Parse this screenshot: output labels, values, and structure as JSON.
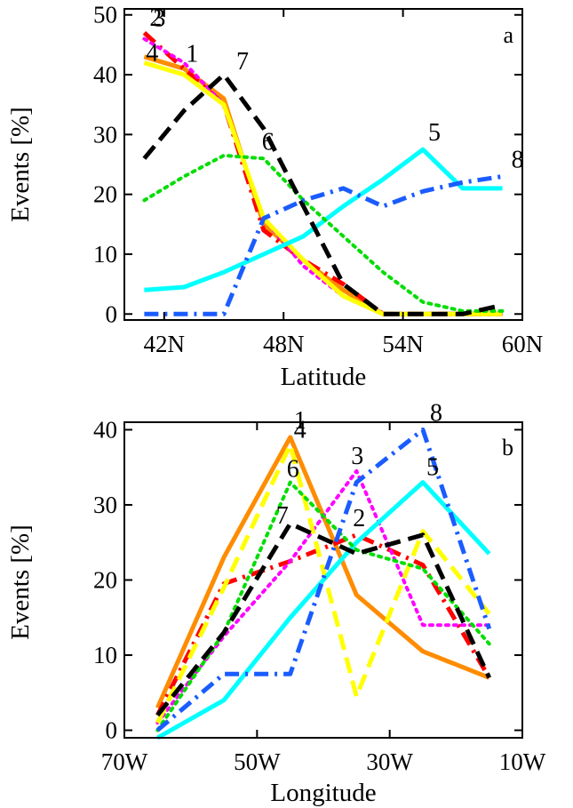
{
  "chart_data": [
    {
      "type": "line",
      "panel_label": "a",
      "xlabel": "Latitude",
      "ylabel": "Events [%]",
      "xlim": [
        40,
        60
      ],
      "ylim": [
        -1,
        51
      ],
      "x_ticks": [
        42,
        48,
        54,
        60
      ],
      "x_tick_labels": [
        "42N",
        "48N",
        "54N",
        "60N"
      ],
      "y_ticks": [
        0,
        10,
        20,
        30,
        40,
        50
      ],
      "y_tick_labels": [
        "0",
        "10",
        "20",
        "30",
        "40",
        "50"
      ],
      "grid": false,
      "legend": "inline numeric labels at line ends",
      "series": [
        {
          "name": "1",
          "color": "#ff8c00",
          "style": "solid",
          "x": [
            41,
            43,
            45,
            47,
            49,
            51,
            53,
            55,
            57,
            59
          ],
          "y": [
            43,
            41,
            36,
            15,
            9,
            4,
            0,
            0,
            0,
            0
          ]
        },
        {
          "name": "2",
          "color": "#ff0000",
          "style": "dashdot",
          "x": [
            41,
            43,
            45,
            47,
            49,
            51,
            53,
            55,
            57,
            59
          ],
          "y": [
            47,
            41,
            35,
            14,
            9,
            5,
            0,
            0,
            0,
            0
          ]
        },
        {
          "name": "3",
          "color": "#ff00ff",
          "style": "dotted",
          "x": [
            41,
            43,
            45,
            47,
            49,
            51,
            53,
            55,
            57,
            59
          ],
          "y": [
            46,
            42,
            35,
            16,
            8,
            3,
            0,
            0,
            0,
            0
          ]
        },
        {
          "name": "4",
          "color": "#ffff00",
          "style": "solid",
          "x": [
            41,
            43,
            45,
            47,
            49,
            51,
            53,
            55,
            57,
            59
          ],
          "y": [
            42,
            40,
            35,
            16,
            9,
            3,
            0,
            0,
            0,
            0
          ]
        },
        {
          "name": "5",
          "color": "#00ffff",
          "style": "solid",
          "x": [
            41,
            43,
            45,
            47,
            49,
            51,
            53,
            55,
            57,
            59
          ],
          "y": [
            4,
            4.5,
            7,
            10,
            13,
            18,
            22.5,
            27.5,
            21,
            21
          ]
        },
        {
          "name": "6",
          "color": "#00dd00",
          "style": "dotted",
          "x": [
            41,
            43,
            45,
            47,
            49,
            51,
            53,
            55,
            57,
            59
          ],
          "y": [
            19,
            23,
            26.5,
            26,
            19,
            13,
            7,
            2,
            0.5,
            0.5
          ]
        },
        {
          "name": "7",
          "color": "#000000",
          "style": "dashed",
          "x": [
            41,
            43,
            45,
            47,
            49,
            51,
            53,
            55,
            57,
            59
          ],
          "y": [
            26,
            34,
            40,
            31,
            18,
            5,
            0,
            0,
            0,
            1.5
          ]
        },
        {
          "name": "8",
          "color": "#1a5cff",
          "style": "dashdot",
          "x": [
            41,
            43,
            45,
            47,
            49,
            51,
            53,
            55,
            57,
            59
          ],
          "y": [
            0,
            0,
            0,
            16,
            19,
            21,
            18,
            20.5,
            22,
            23
          ]
        }
      ]
    },
    {
      "type": "line",
      "panel_label": "b",
      "xlabel": "Longitude",
      "ylabel": "Events [%]",
      "xlim": [
        -70,
        -10
      ],
      "ylim": [
        -1,
        41
      ],
      "x_ticks": [
        -70,
        -50,
        -30,
        -10
      ],
      "x_tick_labels": [
        "70W",
        "50W",
        "30W",
        "10W"
      ],
      "y_ticks": [
        0,
        10,
        20,
        30,
        40
      ],
      "y_tick_labels": [
        "0",
        "10",
        "20",
        "30",
        "40"
      ],
      "grid": false,
      "legend": "inline numeric labels at line peaks",
      "series": [
        {
          "name": "1",
          "color": "#ff8c00",
          "style": "solid",
          "x": [
            -65,
            -55,
            -45,
            -35,
            -25,
            -15
          ],
          "y": [
            3,
            23,
            39,
            18,
            10.5,
            7
          ]
        },
        {
          "name": "2",
          "color": "#ff0000",
          "style": "dashdot",
          "x": [
            -65,
            -55,
            -45,
            -35,
            -25,
            -15
          ],
          "y": [
            2,
            19.5,
            22.5,
            26,
            22,
            7
          ]
        },
        {
          "name": "3",
          "color": "#ff00ff",
          "style": "dotted",
          "x": [
            -65,
            -55,
            -45,
            -35,
            -25,
            -15
          ],
          "y": [
            1,
            12.5,
            22.5,
            34.5,
            14,
            14
          ]
        },
        {
          "name": "4",
          "color": "#ffff00",
          "style": "dashed",
          "x": [
            -65,
            -55,
            -45,
            -35,
            -25,
            -15
          ],
          "y": [
            1,
            19,
            38,
            4.5,
            26.5,
            15.5
          ]
        },
        {
          "name": "5",
          "color": "#00ffff",
          "style": "solid",
          "x": [
            -65,
            -55,
            -45,
            -35,
            -25,
            -15
          ],
          "y": [
            -1,
            4,
            15,
            25,
            33,
            23.5
          ]
        },
        {
          "name": "6",
          "color": "#00dd00",
          "style": "dotted",
          "x": [
            -65,
            -55,
            -45,
            -35,
            -25,
            -15
          ],
          "y": [
            0,
            13,
            33,
            24,
            21.5,
            11.5
          ]
        },
        {
          "name": "7",
          "color": "#000000",
          "style": "dashed",
          "x": [
            -65,
            -55,
            -45,
            -35,
            -25,
            -15
          ],
          "y": [
            2,
            13,
            27.5,
            23.5,
            26,
            7
          ]
        },
        {
          "name": "8",
          "color": "#1a5cff",
          "style": "dashdot",
          "x": [
            -65,
            -55,
            -45,
            -35,
            -25,
            -15
          ],
          "y": [
            0,
            7.5,
            7.5,
            33,
            40,
            13.5
          ]
        }
      ]
    }
  ],
  "colors": {
    "axes": "#000000",
    "background": "#ffffff"
  }
}
